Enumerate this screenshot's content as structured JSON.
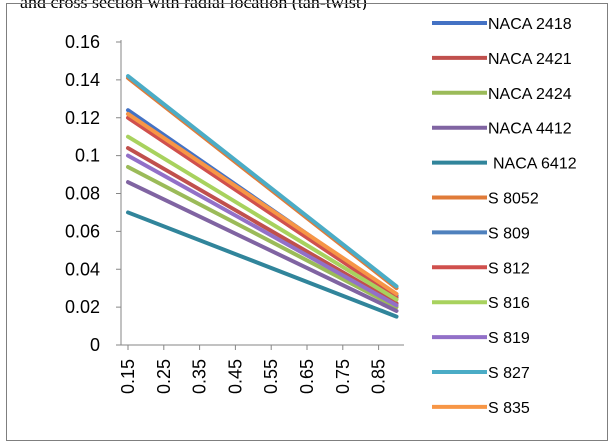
{
  "title_fragment": "and cross section with radial location (tan-twist)",
  "chart_data": {
    "type": "line",
    "x": [
      0.15,
      0.9
    ],
    "x_tick_labels": [
      "0.15",
      "0.25",
      "0.35",
      "0.45",
      "0.55",
      "0.65",
      "0.75",
      "0.85"
    ],
    "y_tick_labels": [
      "0",
      "0.02",
      "0.04",
      "0.06",
      "0.08",
      "0.1",
      "0.12",
      "0.14",
      "0.16"
    ],
    "ylim": [
      0,
      0.16
    ],
    "grid": false,
    "legend_position": "right",
    "series": [
      {
        "name": "NACA 2418",
        "color": "#4472c4",
        "values": [
          0.124,
          0.026
        ]
      },
      {
        "name": "NACA 2421",
        "color": "#c0504d",
        "values": [
          0.104,
          0.022
        ]
      },
      {
        "name": "NACA 2424",
        "color": "#9bbb59",
        "values": [
          0.094,
          0.02
        ]
      },
      {
        "name": "NACA 4412",
        "color": "#8064a2",
        "values": [
          0.086,
          0.018
        ]
      },
      {
        "name": "NACA 6412",
        "color": "#31859b",
        "values": [
          0.07,
          0.015
        ]
      },
      {
        "name": "S 8052",
        "color": "#e07b39",
        "values": [
          0.141,
          0.03
        ]
      },
      {
        "name": "S 809",
        "color": "#4f81bd",
        "values": [
          0.122,
          0.026
        ]
      },
      {
        "name": "S 812",
        "color": "#d0504d",
        "values": [
          0.12,
          0.025
        ]
      },
      {
        "name": "S 816",
        "color": "#a8d25e",
        "values": [
          0.11,
          0.024
        ]
      },
      {
        "name": "S 819",
        "color": "#9270c8",
        "values": [
          0.1,
          0.021
        ]
      },
      {
        "name": "S 827",
        "color": "#4bacc6",
        "values": [
          0.142,
          0.031
        ]
      },
      {
        "name": "S 835",
        "color": "#f79646",
        "values": [
          0.122,
          0.027
        ]
      }
    ]
  }
}
